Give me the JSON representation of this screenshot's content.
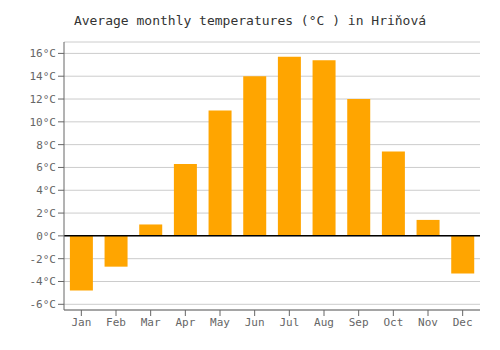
{
  "chart_data": {
    "type": "bar",
    "title": "Average monthly temperatures (°C ) in Hriňová",
    "categories": [
      "Jan",
      "Feb",
      "Mar",
      "Apr",
      "May",
      "Jun",
      "Jul",
      "Aug",
      "Sep",
      "Oct",
      "Nov",
      "Dec"
    ],
    "values": [
      -4.8,
      -2.7,
      1.0,
      6.3,
      11.0,
      14.0,
      15.7,
      15.4,
      12.0,
      7.4,
      1.4,
      -3.3
    ],
    "color": "#FFA500",
    "ylim": [
      -6.5,
      17.0
    ],
    "yticks": [
      {
        "value": -6,
        "label": "-6°C"
      },
      {
        "value": -4,
        "label": "-4°C"
      },
      {
        "value": -2,
        "label": "-2°C"
      },
      {
        "value": 0,
        "label": "0°C"
      },
      {
        "value": 2,
        "label": "2°C"
      },
      {
        "value": 4,
        "label": "4°C"
      },
      {
        "value": 6,
        "label": "6°C"
      },
      {
        "value": 8,
        "label": "8°C"
      },
      {
        "value": 10,
        "label": "10°C"
      },
      {
        "value": 12,
        "label": "12°C"
      },
      {
        "value": 14,
        "label": "14°C"
      },
      {
        "value": 16,
        "label": "16°C"
      }
    ],
    "grid": true
  }
}
